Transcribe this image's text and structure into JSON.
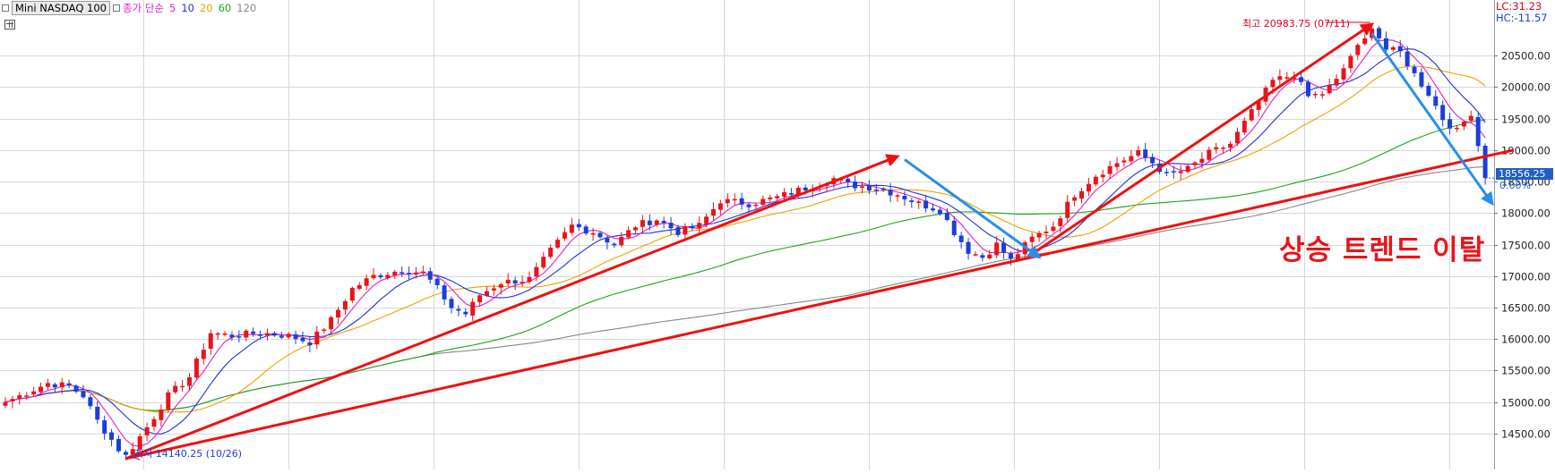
{
  "legend": {
    "instrument": "Mini NASDAQ 100",
    "ma_label": "종가 단순",
    "periods": [
      {
        "label": "5",
        "color": "#e020c8"
      },
      {
        "label": "10",
        "color": "#2030e0"
      },
      {
        "label": "20",
        "color": "#f0a000"
      },
      {
        "label": "60",
        "color": "#20a020"
      },
      {
        "label": "120",
        "color": "#888888"
      }
    ]
  },
  "right_labels": {
    "lc": "LC:31.23",
    "hc": "HC:-11.57",
    "price": "18556.25",
    "pct": "0.00%"
  },
  "annotations": {
    "high": "최고 20983.75 (07/11)",
    "low": "최저 14140.25 (10/26)",
    "trend_text": "상승 트렌드 이탈"
  },
  "colors": {
    "up": "#e8141c",
    "down": "#1a3fd6",
    "trend_red": "#ee1111",
    "trend_blue": "#2a8ee8",
    "grid": "#d8d8d8"
  },
  "chart_data": {
    "type": "candlestick",
    "title": "Mini NASDAQ 100",
    "ylim": [
      14000,
      21100
    ],
    "y_ticks": [
      "14500.00",
      "15000.00",
      "15500.00",
      "16000.00",
      "16500.00",
      "17000.00",
      "17500.00",
      "18000.00",
      "18500.00",
      "19000.00",
      "19500.00",
      "20000.00",
      "20500.00"
    ],
    "y_tick_values": [
      14500,
      15000,
      15500,
      16000,
      16500,
      17000,
      17500,
      18000,
      18500,
      19000,
      19500,
      20000,
      20500
    ],
    "grid": true,
    "candle_count": 210,
    "anchors": [
      [
        0,
        15000
      ],
      [
        3,
        15150
      ],
      [
        6,
        15300
      ],
      [
        9,
        15250
      ],
      [
        11,
        15100
      ],
      [
        13,
        14700
      ],
      [
        16,
        14250
      ],
      [
        17,
        14140
      ],
      [
        20,
        14600
      ],
      [
        23,
        15100
      ],
      [
        26,
        15400
      ],
      [
        29,
        16100
      ],
      [
        32,
        16050
      ],
      [
        36,
        16100
      ],
      [
        40,
        16050
      ],
      [
        43,
        15950
      ],
      [
        46,
        16300
      ],
      [
        49,
        16800
      ],
      [
        52,
        17000
      ],
      [
        56,
        17100
      ],
      [
        59,
        17050
      ],
      [
        61,
        16800
      ],
      [
        63,
        16500
      ],
      [
        65,
        16400
      ],
      [
        67,
        16700
      ],
      [
        70,
        16900
      ],
      [
        74,
        16950
      ],
      [
        77,
        17400
      ],
      [
        80,
        17800
      ],
      [
        83,
        17700
      ],
      [
        86,
        17500
      ],
      [
        89,
        17800
      ],
      [
        92,
        17900
      ],
      [
        95,
        17700
      ],
      [
        98,
        17800
      ],
      [
        101,
        18200
      ],
      [
        105,
        18150
      ],
      [
        109,
        18250
      ],
      [
        113,
        18400
      ],
      [
        117,
        18550
      ],
      [
        119,
        18450
      ],
      [
        123,
        18400
      ],
      [
        126,
        18300
      ],
      [
        129,
        18150
      ],
      [
        132,
        18050
      ],
      [
        134,
        17700
      ],
      [
        136,
        17400
      ],
      [
        138,
        17300
      ],
      [
        140,
        17500
      ],
      [
        142,
        17250
      ],
      [
        145,
        17600
      ],
      [
        148,
        17800
      ],
      [
        151,
        18300
      ],
      [
        154,
        18600
      ],
      [
        157,
        18800
      ],
      [
        160,
        18950
      ],
      [
        162,
        18800
      ],
      [
        164,
        18600
      ],
      [
        167,
        18700
      ],
      [
        170,
        18950
      ],
      [
        173,
        19100
      ],
      [
        176,
        19600
      ],
      [
        179,
        20100
      ],
      [
        182,
        20200
      ],
      [
        184,
        19850
      ],
      [
        186,
        19900
      ],
      [
        188,
        20100
      ],
      [
        190,
        20500
      ],
      [
        192,
        20750
      ],
      [
        193,
        20984
      ],
      [
        195,
        20600
      ],
      [
        197,
        20550
      ],
      [
        199,
        20200
      ],
      [
        201,
        19900
      ],
      [
        203,
        19500
      ],
      [
        205,
        19300
      ],
      [
        207,
        19600
      ],
      [
        209,
        18556
      ]
    ],
    "moving_averages": [
      5,
      10,
      20,
      60,
      120
    ],
    "annotations": [
      {
        "text": "최고 20983.75 (07/11)",
        "index": 193,
        "value": 20983.75
      },
      {
        "text": "최저 14140.25 (10/26)",
        "index": 17,
        "value": 14140.25
      },
      {
        "text": "상승 트렌드 이탈"
      }
    ],
    "trendlines": [
      {
        "color": "red",
        "from": [
          17,
          14100
        ],
        "to": [
          213,
          19000
        ]
      },
      {
        "color": "red",
        "from": [
          17,
          14100
        ],
        "to": [
          126,
          18900
        ]
      },
      {
        "color": "red",
        "from": [
          145,
          17350
        ],
        "to": [
          193,
          21000
        ]
      },
      {
        "color": "blue",
        "from": [
          127,
          18850
        ],
        "to": [
          146,
          17300
        ]
      },
      {
        "color": "blue",
        "from": [
          193,
          20850
        ],
        "to": [
          210,
          18150
        ]
      }
    ]
  }
}
